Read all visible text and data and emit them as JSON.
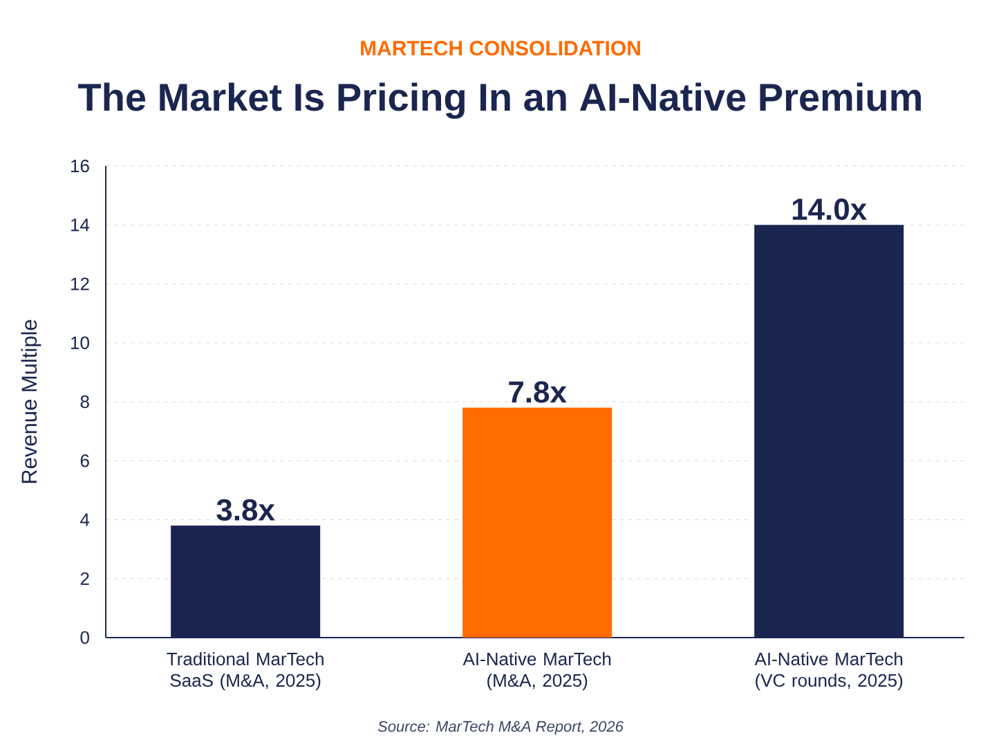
{
  "chart_data": {
    "type": "bar",
    "subtitle": "MARTECH CONSOLIDATION",
    "title": "The Market Is Pricing In an AI-Native Premium",
    "ylabel": "Revenue Multiple",
    "categories": [
      "Traditional MarTech SaaS (M&A, 2025)",
      "AI-Native MarTech (M&A, 2025)",
      "AI-Native MarTech (VC rounds, 2025)"
    ],
    "values": [
      3.8,
      7.8,
      14.0
    ],
    "colors": [
      "#1b2650",
      "#ff6b00",
      "#1b2650"
    ],
    "value_labels": [
      "3.8x",
      "7.8x",
      "14.0x"
    ],
    "ylim": [
      0,
      16
    ],
    "yticks": [
      0,
      2,
      4,
      6,
      8,
      10,
      12,
      14,
      16
    ],
    "grid": "y",
    "annotations": [
      "Source: MarTech M&A Report, 2026"
    ]
  }
}
